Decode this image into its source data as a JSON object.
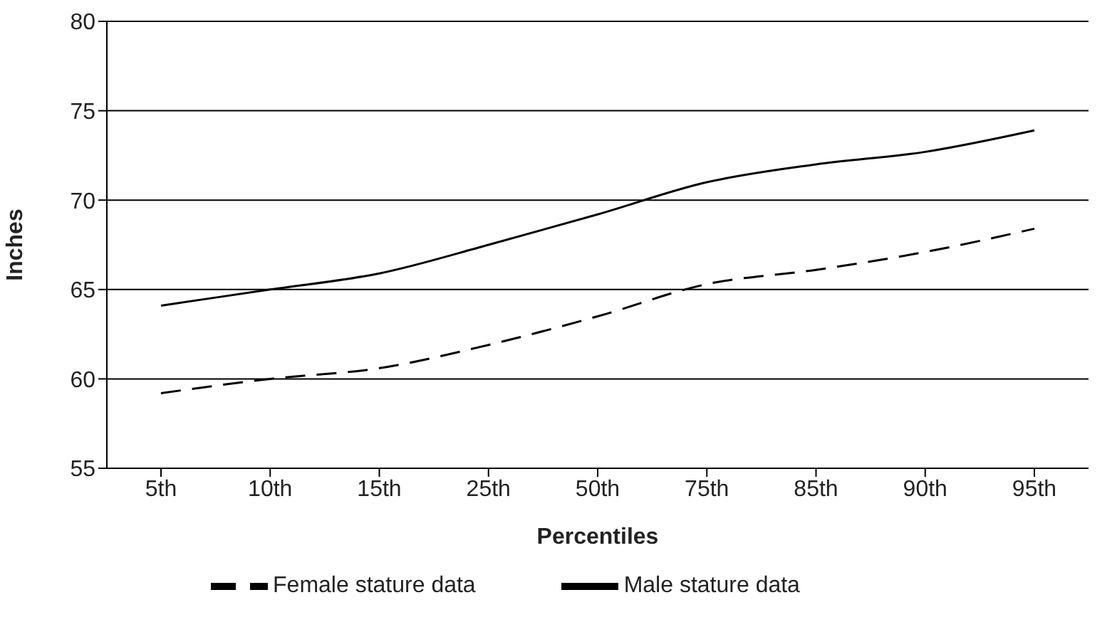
{
  "chart_data": {
    "type": "line",
    "xlabel": "Percentiles",
    "ylabel": "Inches",
    "categories": [
      "5th",
      "10th",
      "15th",
      "25th",
      "50th",
      "75th",
      "85th",
      "90th",
      "95th"
    ],
    "series": [
      {
        "name": "Female stature data",
        "color": "#000000",
        "line_style": "dashed",
        "values": [
          59.2,
          60.0,
          60.6,
          61.9,
          63.5,
          65.3,
          66.1,
          67.1,
          68.4
        ]
      },
      {
        "name": "Male stature data",
        "color": "#000000",
        "line_style": "solid",
        "values": [
          64.1,
          65.0,
          65.9,
          67.5,
          69.2,
          71.0,
          72.0,
          72.7,
          73.9
        ]
      }
    ],
    "ylim": [
      55,
      80
    ],
    "yticks": [
      55,
      60,
      65,
      70,
      75,
      80
    ],
    "grid": "y",
    "legend": "bottom",
    "marker": "none"
  }
}
